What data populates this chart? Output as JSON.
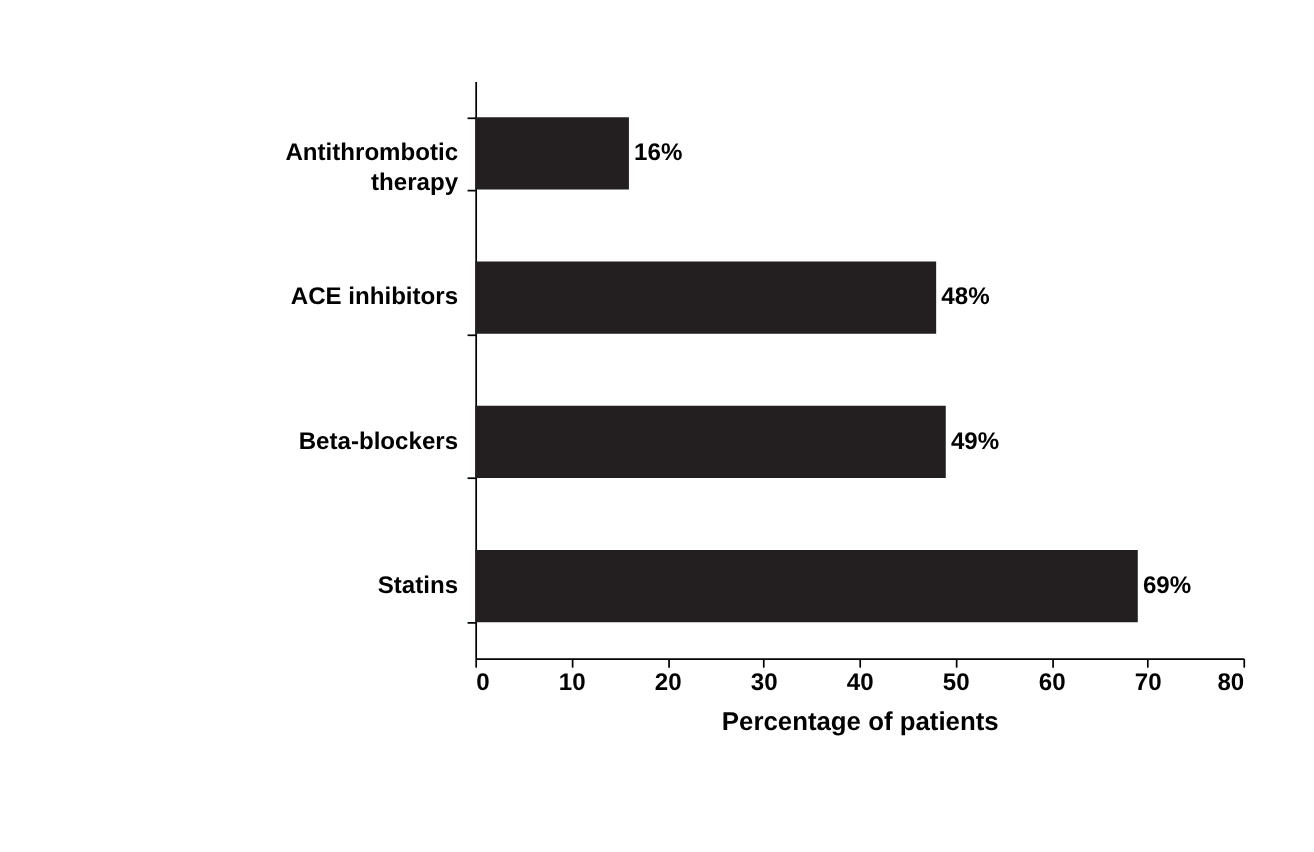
{
  "chart_data": {
    "type": "bar",
    "orientation": "horizontal",
    "xlabel": "Percentage of patients",
    "categories": [
      "Antithrombotic therapy",
      "ACE inhibitors",
      "Beta-blockers",
      "Statins"
    ],
    "values": [
      16,
      48,
      49,
      69
    ],
    "color": "#231f20",
    "value_labels": [
      "16%",
      "48%",
      "49%",
      "69%"
    ],
    "xlim": [
      0,
      80
    ],
    "xticks": [
      0,
      10,
      20,
      30,
      40,
      50,
      60,
      70,
      80
    ],
    "grid": false
  }
}
